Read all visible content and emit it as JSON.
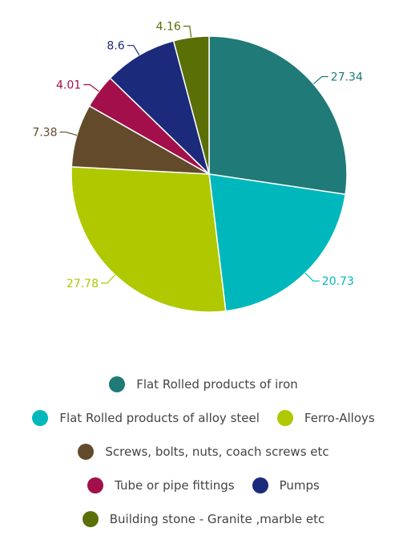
{
  "chart_data": {
    "type": "pie",
    "categories": [
      "Flat Rolled products of iron",
      "Flat Rolled products of alloy steel",
      "Ferro-Alloys",
      "Screws, bolts, nuts, coach screws etc",
      "Tube or pipe fittings",
      "Pumps",
      "Building stone - Granite ,marble etc"
    ],
    "values": [
      27.34,
      20.73,
      27.78,
      7.38,
      4.01,
      8.6,
      4.16
    ],
    "data_labels": [
      "27.34",
      "20.73",
      "27.78",
      "7.38",
      "4.01",
      "8.6",
      "4.16"
    ],
    "colors": [
      "#1f7a78",
      "#00b8bc",
      "#afc800",
      "#634a2a",
      "#a20f4b",
      "#1c2a7c",
      "#5a6f06"
    ],
    "legend_placement": "bottom"
  }
}
